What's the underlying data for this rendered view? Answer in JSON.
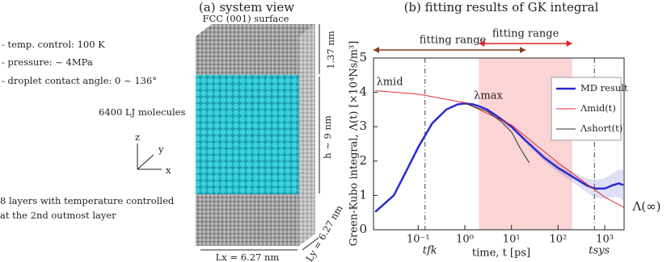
{
  "left_panel": {
    "title": "(a) system view",
    "surface": "FCC (001) surface",
    "conditions": [
      "- temp. control: 100 K",
      "- pressure: ~ 4MPa",
      "- droplet contact angle: 0 ~ 136°"
    ],
    "molecules": "6400 LJ molecules",
    "layers": [
      "8 layers with temperature controlled",
      "at the 2nd outmost layer"
    ],
    "dim_top": "1.37 nm",
    "dim_h": "h ~ 9 nm",
    "dim_lx": "Lx = 6.27 nm",
    "dim_ly": "Ly = 6.27 nm",
    "axes": [
      "x",
      "y",
      "z"
    ]
  },
  "chart_data": {
    "type": "line",
    "title": "(b) fitting results of GK integral",
    "x_label": "time, t [ps]",
    "y_label": "Green-Kubo integral, Λ(t) [×10⁴Ns/m³]",
    "log_x": true,
    "xlim": [
      0.011,
      2600
    ],
    "ylim": [
      0,
      5
    ],
    "xticks": [
      {
        "value": 0.1,
        "label": "10⁻¹"
      },
      {
        "value": 1,
        "label": "10⁰"
      },
      {
        "value": 10,
        "label": "10¹"
      },
      {
        "value": 100,
        "label": "10²"
      },
      {
        "value": 1000,
        "label": "10³"
      }
    ],
    "yticks": [
      0,
      1,
      2,
      3,
      4,
      5
    ],
    "legend": "upper right",
    "series": [
      {
        "name": "MD result",
        "color": "#2a2ad0",
        "x": [
          0.012,
          0.03,
          0.06,
          0.1,
          0.2,
          0.4,
          0.7,
          1,
          1.5,
          2,
          3,
          5,
          10,
          20,
          50,
          100,
          200,
          400,
          600,
          1000,
          1500,
          2000,
          2500
        ],
        "values": [
          0.52,
          1.0,
          1.8,
          2.4,
          3.1,
          3.5,
          3.65,
          3.68,
          3.65,
          3.6,
          3.5,
          3.3,
          3.0,
          2.6,
          2.1,
          1.8,
          1.55,
          1.3,
          1.2,
          1.2,
          1.3,
          1.35,
          1.3
        ],
        "errors": [
          0,
          0,
          0,
          0,
          0,
          0,
          0,
          0,
          0,
          0,
          0,
          0.02,
          0.05,
          0.07,
          0.1,
          0.12,
          0.15,
          0.2,
          0.25,
          0.3,
          0.35,
          0.4,
          0.45
        ]
      },
      {
        "name": "Λmid(t)",
        "color": "#e03030",
        "x": [
          0.012,
          0.1,
          1,
          10,
          100,
          1000,
          2600
        ],
        "values": [
          4.05,
          3.95,
          3.7,
          3.05,
          1.95,
          0.95,
          0.65
        ]
      },
      {
        "name": "Λshort(t)",
        "color": "#333333",
        "x": [
          1,
          3,
          6,
          10,
          15,
          24
        ],
        "values": [
          3.68,
          3.45,
          3.15,
          2.85,
          2.4,
          1.95
        ]
      }
    ],
    "shaded_range": [
      2,
      200
    ],
    "vlines": [
      {
        "label": "tfk",
        "value": 0.14
      },
      {
        "label": "tsys",
        "value": 600
      }
    ],
    "fitting_ranges": [
      {
        "label": "fitting range",
        "range": [
          0.011,
          20
        ],
        "color": "#8b3a1a"
      },
      {
        "label": "fitting range",
        "range": [
          2,
          200
        ],
        "color": "#e02020"
      }
    ],
    "annotations": [
      {
        "text": "λmid",
        "color": "#e03030"
      },
      {
        "text": "λmax",
        "color": "#2a2ad0"
      },
      {
        "text": "Λ(∞)",
        "color": "#2a2ad0"
      }
    ]
  }
}
